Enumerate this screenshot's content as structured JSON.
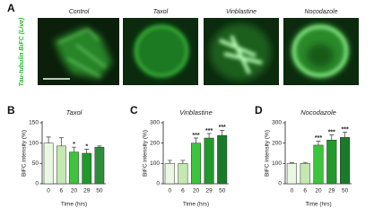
{
  "panel_labels": [
    "A",
    "B",
    "C",
    "D"
  ],
  "images": {
    "label": "Tau-tubulin BiFC (Live)",
    "titles": [
      "Control",
      "Taxol",
      "Vinblastine",
      "Nocodazole"
    ]
  },
  "chart_data": [
    {
      "type": "bar",
      "title": "Taxol",
      "ylabel": "BiFC intensity (%)",
      "xlabel": "Time (hrs)",
      "categories": [
        "0",
        "6",
        "20",
        "29",
        "50"
      ],
      "values": [
        100,
        93,
        78,
        75,
        90
      ],
      "errors": [
        15,
        20,
        12,
        10,
        3
      ],
      "annotations": [
        null,
        null,
        "*",
        "*",
        null
      ],
      "colors": [
        "#eaf7e2",
        "#c3e9b1",
        "#3cc43c",
        "#1f9a2a",
        "#2b8f3a"
      ],
      "ylim": [
        0,
        150
      ],
      "yticks": [
        0,
        50,
        100,
        150
      ]
    },
    {
      "type": "bar",
      "title": "Vinblastine",
      "ylabel": "BiFC intensity (%)",
      "xlabel": "Time (hrs)",
      "categories": [
        "0",
        "6",
        "20",
        "29",
        "50"
      ],
      "values": [
        100,
        100,
        200,
        225,
        238
      ],
      "errors": [
        15,
        15,
        25,
        22,
        25
      ],
      "annotations": [
        null,
        null,
        "***",
        "***",
        "***"
      ],
      "colors": [
        "#eaf7e2",
        "#c3e9b1",
        "#3cc43c",
        "#1f9a2a",
        "#1b7a2a"
      ],
      "ylim": [
        0,
        300
      ],
      "yticks": [
        0,
        100,
        200,
        300
      ]
    },
    {
      "type": "bar",
      "title": "Nocodazole",
      "ylabel": "BiFC intensity (%)",
      "xlabel": "Time (hrs)",
      "categories": [
        "0",
        "6",
        "20",
        "29",
        "50"
      ],
      "values": [
        100,
        100,
        190,
        215,
        228
      ],
      "errors": [
        3,
        5,
        20,
        25,
        25
      ],
      "annotations": [
        null,
        null,
        "***",
        "***",
        "***"
      ],
      "colors": [
        "#eaf7e2",
        "#c3e9b1",
        "#3cc43c",
        "#1f9a2a",
        "#1b7a2a"
      ],
      "ylim": [
        0,
        300
      ],
      "yticks": [
        0,
        100,
        200,
        300
      ]
    }
  ]
}
